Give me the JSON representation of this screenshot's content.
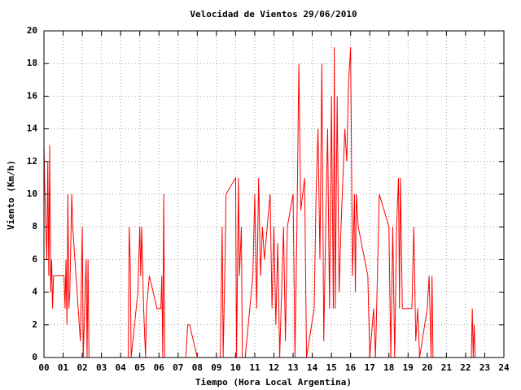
{
  "chart_data": {
    "type": "line",
    "title": "Velocidad de Vientos 29/06/2010",
    "x_label": "Tiempo (Hora Local Argentina)",
    "y_label": "Viento (Km/h)",
    "color": "#ff0000",
    "grid": true,
    "xlim": [
      0,
      24
    ],
    "ylim": [
      0,
      20
    ],
    "xticks": [
      {
        "value": 0,
        "label": "00"
      },
      {
        "value": 1,
        "label": "01"
      },
      {
        "value": 2,
        "label": "02"
      },
      {
        "value": 3,
        "label": "03"
      },
      {
        "value": 4,
        "label": "04"
      },
      {
        "value": 5,
        "label": "05"
      },
      {
        "value": 6,
        "label": "06"
      },
      {
        "value": 7,
        "label": "07"
      },
      {
        "value": 8,
        "label": "08"
      },
      {
        "value": 9,
        "label": "09"
      },
      {
        "value": 10,
        "label": "10"
      },
      {
        "value": 11,
        "label": "11"
      },
      {
        "value": 12,
        "label": "12"
      },
      {
        "value": 13,
        "label": "13"
      },
      {
        "value": 14,
        "label": "14"
      },
      {
        "value": 15,
        "label": "15"
      },
      {
        "value": 16,
        "label": "16"
      },
      {
        "value": 17,
        "label": "17"
      },
      {
        "value": 18,
        "label": "18"
      },
      {
        "value": 19,
        "label": "19"
      },
      {
        "value": 20,
        "label": "20"
      },
      {
        "value": 21,
        "label": "21"
      },
      {
        "value": 22,
        "label": "22"
      },
      {
        "value": 23,
        "label": "23"
      },
      {
        "value": 24,
        "label": "24"
      }
    ],
    "yticks": [
      0,
      2,
      4,
      6,
      8,
      10,
      12,
      14,
      16,
      18,
      20
    ],
    "x": [
      0,
      0.05,
      0.1,
      0.15,
      0.2,
      0.25,
      0.3,
      0.35,
      0.4,
      0.45,
      0.5,
      1.05,
      1.1,
      1.15,
      1.2,
      1.25,
      1.3,
      1.35,
      1.45,
      1.5,
      1.9,
      2.0,
      2.05,
      2.1,
      2.2,
      2.25,
      2.3,
      2.35,
      4.4,
      4.45,
      4.5,
      4.55,
      4.9,
      5.0,
      5.05,
      5.1,
      5.2,
      5.3,
      5.35,
      5.5,
      5.9,
      6.1,
      6.15,
      6.2,
      6.25,
      6.3,
      7.4,
      7.5,
      7.6,
      8.0,
      9.2,
      9.3,
      9.35,
      9.45,
      9.5,
      10.0,
      10.05,
      10.15,
      10.2,
      10.3,
      10.35,
      10.5,
      10.9,
      11.0,
      11.1,
      11.2,
      11.3,
      11.4,
      11.5,
      11.8,
      11.9,
      12.0,
      12.1,
      12.2,
      12.3,
      12.5,
      12.6,
      12.7,
      13.0,
      13.1,
      13.2,
      13.3,
      13.4,
      13.5,
      13.6,
      13.7,
      14.1,
      14.2,
      14.3,
      14.4,
      14.5,
      14.6,
      14.7,
      14.8,
      14.9,
      15.0,
      15.1,
      15.15,
      15.2,
      15.3,
      15.4,
      15.5,
      15.7,
      15.8,
      15.9,
      16.0,
      16.1,
      16.2,
      16.25,
      16.3,
      16.4,
      16.9,
      17.0,
      17.2,
      17.3,
      17.5,
      18.0,
      18.1,
      18.2,
      18.3,
      18.4,
      18.5,
      18.55,
      18.6,
      18.7,
      19.2,
      19.3,
      19.4,
      19.5,
      19.6,
      20.0,
      20.1,
      20.2,
      20.25,
      20.3,
      22.3,
      22.35,
      22.4,
      22.45,
      22.5
    ],
    "values": [
      13,
      10,
      8,
      6,
      12,
      5,
      13,
      4,
      6,
      3,
      5,
      5,
      3,
      6,
      2,
      10,
      3,
      4,
      10,
      8,
      1,
      8,
      0,
      2,
      6,
      0,
      6,
      0,
      0,
      8,
      6,
      0,
      4,
      8,
      5,
      8,
      3,
      0,
      3,
      5,
      3,
      3,
      5,
      0,
      10,
      0,
      0,
      2,
      2,
      0,
      0,
      8,
      0,
      6,
      10,
      11,
      0,
      11,
      5,
      8,
      0,
      0,
      5,
      10,
      3,
      11,
      5,
      8,
      6,
      10,
      3,
      8,
      2,
      7,
      0,
      8,
      1,
      8,
      10,
      0,
      8,
      18,
      9,
      10,
      11,
      0,
      3,
      10,
      14,
      6,
      18,
      1,
      8,
      14,
      3,
      16,
      3,
      19,
      3,
      16,
      4,
      8,
      14,
      12,
      17,
      19,
      5,
      10,
      4,
      10,
      8,
      5,
      0,
      3,
      0,
      10,
      8,
      0,
      8,
      0,
      8,
      11,
      3,
      11,
      3,
      3,
      8,
      1,
      3,
      0,
      3,
      5,
      0,
      5,
      0,
      0,
      3,
      0,
      2,
      0
    ]
  }
}
